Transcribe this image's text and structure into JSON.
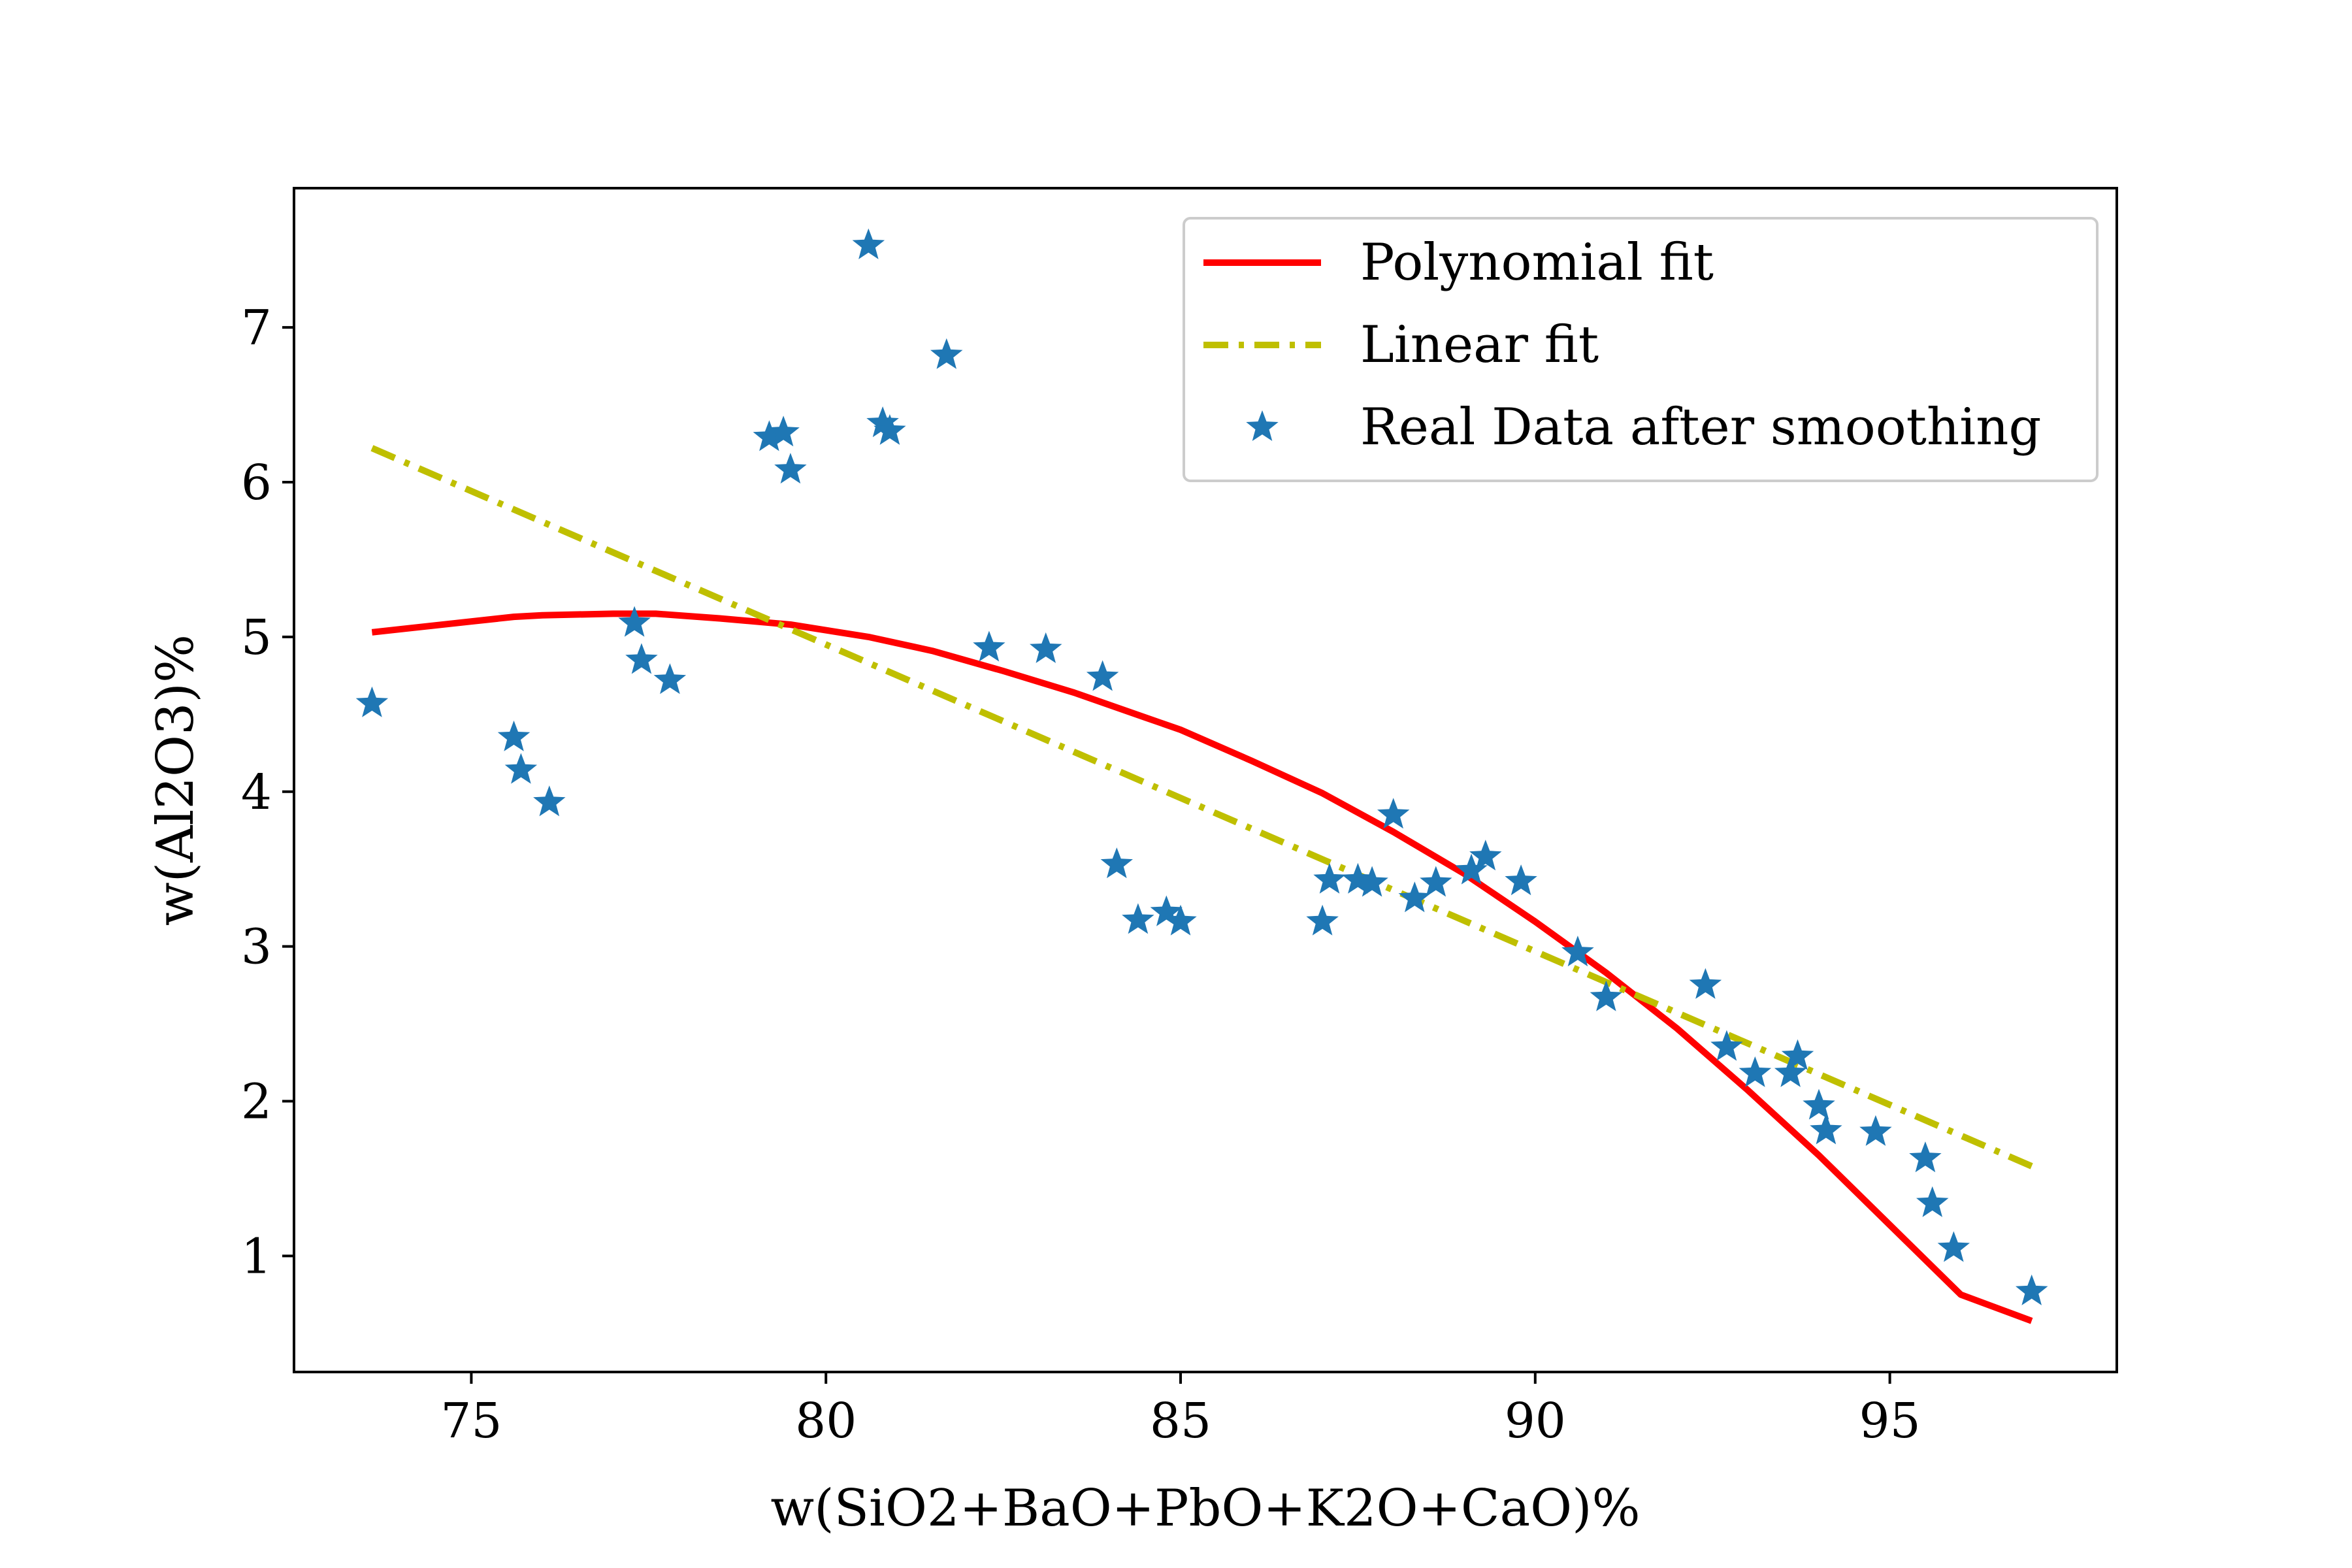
{
  "chart_data": {
    "type": "scatter",
    "title": "",
    "xlabel": "w(SiO2+BaO+PbO+K2O+CaO)%",
    "ylabel": "w(Al2O3)%",
    "xlim": [
      72.5,
      98.2
    ],
    "ylim": [
      0.25,
      7.9
    ],
    "xticks": [
      75,
      80,
      85,
      90,
      95
    ],
    "yticks": [
      1,
      2,
      3,
      4,
      5,
      6,
      7
    ],
    "grid": false,
    "legend_position": "top-right",
    "series": [
      {
        "name": "Polynomial fit",
        "kind": "line",
        "color": "#ff0000",
        "style": "solid",
        "x": [
          73.6,
          75.0,
          75.6,
          76.0,
          77.0,
          77.6,
          78.5,
          79.5,
          80.6,
          81.5,
          82.5,
          83.5,
          84.5,
          85.0,
          86.0,
          87.0,
          88.0,
          89.0,
          90.0,
          91.0,
          92.0,
          93.0,
          94.0,
          95.0,
          96.0,
          97.0
        ],
        "y": [
          5.03,
          5.1,
          5.13,
          5.14,
          5.15,
          5.15,
          5.12,
          5.08,
          5.0,
          4.91,
          4.78,
          4.64,
          4.48,
          4.4,
          4.2,
          3.99,
          3.74,
          3.47,
          3.16,
          2.83,
          2.47,
          2.07,
          1.65,
          1.2,
          0.75,
          0.58
        ]
      },
      {
        "name": "Linear fit",
        "kind": "line",
        "color": "#bfbf00",
        "style": "dashdot",
        "x": [
          73.6,
          97.0
        ],
        "y": [
          6.22,
          1.58
        ]
      },
      {
        "name": "Real Data after smoothing",
        "kind": "scatter",
        "color": "#1f77b4",
        "marker": "star",
        "x": [
          73.6,
          75.6,
          75.7,
          76.1,
          77.3,
          77.4,
          77.8,
          79.2,
          79.4,
          79.5,
          80.6,
          80.8,
          80.9,
          81.7,
          82.3,
          83.1,
          83.9,
          84.1,
          84.4,
          84.8,
          85.0,
          87.0,
          87.1,
          87.5,
          87.7,
          88.0,
          88.3,
          88.6,
          89.1,
          89.3,
          89.8,
          90.6,
          91.0,
          92.4,
          92.7,
          93.1,
          93.6,
          93.7,
          94.0,
          94.1,
          94.8,
          95.5,
          95.6,
          95.9,
          97.0
        ],
        "y": [
          4.57,
          4.35,
          4.14,
          3.93,
          5.09,
          4.85,
          4.72,
          6.29,
          6.32,
          6.08,
          7.53,
          6.38,
          6.33,
          6.82,
          4.93,
          4.92,
          4.74,
          3.53,
          3.17,
          3.22,
          3.16,
          3.16,
          3.43,
          3.43,
          3.41,
          3.85,
          3.31,
          3.41,
          3.49,
          3.58,
          3.42,
          2.96,
          2.67,
          2.75,
          2.35,
          2.18,
          2.18,
          2.29,
          1.97,
          1.81,
          1.8,
          1.63,
          1.34,
          1.05,
          0.77
        ]
      }
    ]
  }
}
